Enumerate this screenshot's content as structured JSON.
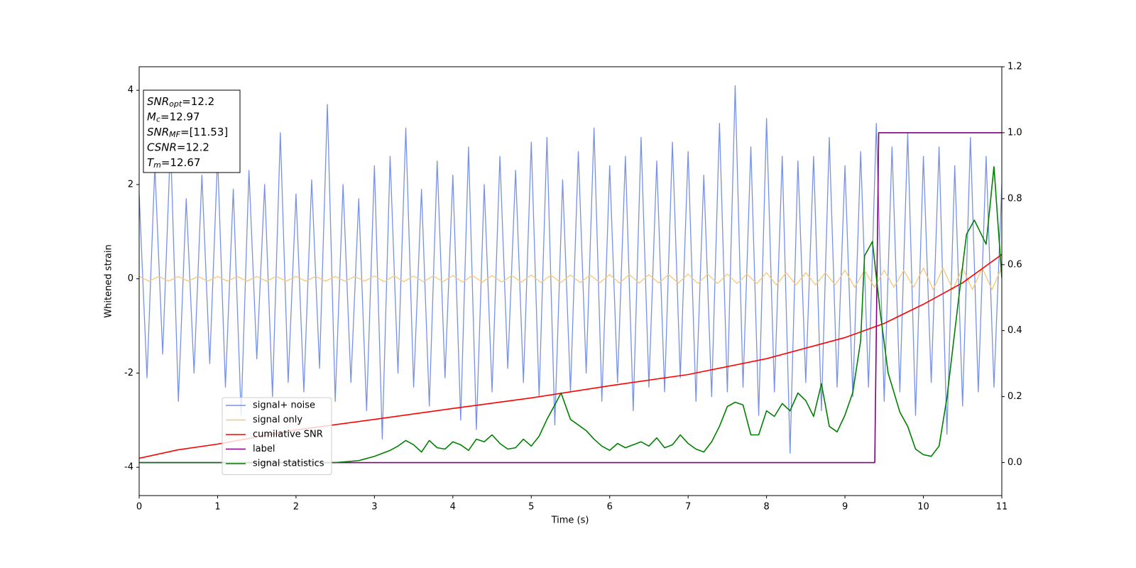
{
  "chart_data": {
    "type": "line",
    "xlabel": "Time (s)",
    "ylabel": "Whitened strain",
    "xlim": [
      0,
      11
    ],
    "xticks": [
      0,
      1,
      2,
      3,
      4,
      5,
      6,
      7,
      8,
      9,
      10,
      11
    ],
    "ylim": [
      -4.6,
      4.5
    ],
    "yticks": [
      -4,
      -2,
      0,
      2,
      4
    ],
    "y2lim": [
      -0.1,
      1.2
    ],
    "y2ticks": [
      {
        "value": 0,
        "label": "0.0"
      },
      {
        "value": 0.2,
        "label": "0.2"
      },
      {
        "value": 0.4,
        "label": "0.4"
      },
      {
        "value": 0.6,
        "label": "0.6"
      },
      {
        "value": 0.8,
        "label": "0.8"
      },
      {
        "value": 1.0,
        "label": "1.0"
      },
      {
        "value": 1.2,
        "label": "1.2"
      }
    ],
    "legend": "lower left",
    "annotations": [
      {
        "base": "SNR",
        "sub": "opt",
        "text": "=12.2"
      },
      {
        "base": "M",
        "sub": "c",
        "text": "=12.97"
      },
      {
        "base": "SNR",
        "sub": "MF",
        "text": "=[11.53]"
      },
      {
        "base": "CSNR",
        "text": "=12.2"
      },
      {
        "base": "T",
        "sub": "m",
        "text": "=12.67"
      }
    ],
    "series": [
      {
        "name": "signal+ noise",
        "color": "#7891e8",
        "x": [
          0,
          0.1,
          0.2,
          0.3,
          0.4,
          0.5,
          0.6,
          0.7,
          0.8,
          0.9,
          1,
          1.1,
          1.2,
          1.3,
          1.4,
          1.5,
          1.6,
          1.7,
          1.8,
          1.9,
          2,
          2.1,
          2.2,
          2.3,
          2.4,
          2.5,
          2.6,
          2.7,
          2.8,
          2.9,
          3,
          3.1,
          3.2,
          3.3,
          3.4,
          3.5,
          3.6,
          3.7,
          3.8,
          3.9,
          4,
          4.1,
          4.2,
          4.3,
          4.4,
          4.5,
          4.6,
          4.7,
          4.8,
          4.9,
          5,
          5.1,
          5.2,
          5.3,
          5.4,
          5.5,
          5.6,
          5.7,
          5.8,
          5.9,
          6,
          6.1,
          6.2,
          6.3,
          6.4,
          6.5,
          6.6,
          6.7,
          6.8,
          6.9,
          7,
          7.1,
          7.2,
          7.3,
          7.4,
          7.5,
          7.6,
          7.7,
          7.8,
          7.9,
          8,
          8.1,
          8.2,
          8.3,
          8.4,
          8.5,
          8.6,
          8.7,
          8.8,
          8.9,
          9,
          9.1,
          9.2,
          9.3,
          9.4,
          9.5,
          9.6,
          9.7,
          9.8,
          9.9,
          10,
          10.1,
          10.2,
          10.3,
          10.4,
          10.5,
          10.6,
          10.7,
          10.8,
          10.9,
          11
        ],
        "values": [
          1.8,
          -2.1,
          2.4,
          -1.6,
          2.9,
          -2.6,
          1.7,
          -2.0,
          2.2,
          -1.8,
          2.6,
          -2.3,
          1.9,
          -2.9,
          2.3,
          -1.7,
          2.0,
          -2.5,
          3.1,
          -2.2,
          1.8,
          -2.4,
          2.1,
          -1.9,
          3.7,
          -2.6,
          2.0,
          -2.2,
          1.7,
          -2.8,
          2.4,
          -3.4,
          2.6,
          -2.0,
          3.2,
          -2.3,
          1.9,
          -2.7,
          2.5,
          -2.1,
          2.2,
          -3.0,
          2.8,
          -3.2,
          2.0,
          -2.4,
          2.6,
          -1.9,
          2.3,
          -2.2,
          2.9,
          -2.5,
          3.0,
          -3.1,
          2.1,
          -2.4,
          2.7,
          -2.0,
          3.2,
          -2.6,
          2.4,
          -2.2,
          2.6,
          -2.8,
          3.0,
          -2.3,
          2.5,
          -2.4,
          2.9,
          -2.1,
          2.7,
          -2.6,
          2.2,
          -2.5,
          3.3,
          -2.4,
          4.1,
          -2.3,
          2.8,
          -2.9,
          3.4,
          -2.4,
          2.6,
          -3.7,
          2.5,
          -2.2,
          2.6,
          -2.8,
          3.0,
          -2.3,
          2.4,
          -2.5,
          2.7,
          -2.3,
          3.3,
          -2.6,
          2.8,
          -2.4,
          3.1,
          -2.9,
          2.6,
          -2.2,
          2.8,
          -3.3,
          2.4,
          -2.7,
          3.0,
          -2.4,
          2.6,
          -2.3,
          2.0
        ]
      },
      {
        "name": "signal only",
        "color": "#f6c87a",
        "x": [
          0,
          0.125,
          0.25,
          0.375,
          0.5,
          0.625,
          0.75,
          0.875,
          1,
          1.125,
          1.25,
          1.375,
          1.5,
          1.625,
          1.75,
          1.875,
          2,
          2.125,
          2.25,
          2.375,
          2.5,
          2.625,
          2.75,
          2.875,
          3,
          3.125,
          3.25,
          3.375,
          3.5,
          3.625,
          3.75,
          3.875,
          4,
          4.125,
          4.25,
          4.375,
          4.5,
          4.625,
          4.75,
          4.875,
          5,
          5.125,
          5.25,
          5.375,
          5.5,
          5.625,
          5.75,
          5.875,
          6,
          6.125,
          6.25,
          6.375,
          6.5,
          6.625,
          6.75,
          6.875,
          7,
          7.125,
          7.25,
          7.375,
          7.5,
          7.625,
          7.75,
          7.875,
          8,
          8.125,
          8.25,
          8.375,
          8.5,
          8.625,
          8.75,
          8.875,
          9,
          9.125,
          9.25,
          9.375,
          9.5,
          9.625,
          9.75,
          9.875,
          10,
          10.125,
          10.25,
          10.375,
          10.5,
          10.625,
          10.75,
          10.875,
          11
        ],
        "values": [
          0.05,
          -0.05,
          0.05,
          -0.05,
          0.05,
          -0.05,
          0.05,
          -0.05,
          0.05,
          -0.05,
          0.05,
          -0.05,
          0.05,
          -0.05,
          0.05,
          -0.05,
          0.05,
          -0.05,
          0.05,
          -0.05,
          0.05,
          -0.05,
          0.05,
          -0.05,
          0.06,
          -0.06,
          0.06,
          -0.06,
          0.06,
          -0.06,
          0.06,
          -0.06,
          0.07,
          -0.07,
          0.07,
          -0.07,
          0.07,
          -0.07,
          0.07,
          -0.07,
          0.08,
          -0.08,
          0.08,
          -0.08,
          0.08,
          -0.08,
          0.08,
          -0.08,
          0.09,
          -0.09,
          0.09,
          -0.09,
          0.09,
          -0.09,
          0.09,
          -0.09,
          0.1,
          -0.1,
          0.1,
          -0.1,
          0.1,
          -0.1,
          0.1,
          -0.1,
          0.13,
          -0.13,
          0.13,
          -0.13,
          0.13,
          -0.13,
          0.13,
          -0.13,
          0.18,
          -0.18,
          0.18,
          -0.18,
          0.18,
          -0.18,
          0.18,
          -0.18,
          0.23,
          -0.23,
          0.23,
          -0.23,
          0.23,
          -0.23,
          0.23,
          -0.23,
          0.25
        ]
      },
      {
        "name": "cumilative SNR",
        "color": "#ff0000",
        "axis": "y2",
        "x": [
          0,
          0.5,
          1,
          2,
          3,
          4,
          5,
          6,
          7,
          8,
          9,
          9.5,
          10,
          10.5,
          11
        ],
        "values": [
          0.013,
          0.039,
          0.056,
          0.099,
          0.131,
          0.164,
          0.196,
          0.233,
          0.267,
          0.315,
          0.379,
          0.422,
          0.48,
          0.545,
          0.631
        ]
      },
      {
        "name": "label",
        "color": "#800080",
        "axis": "y2",
        "x": [
          0,
          9.38,
          9.43,
          11
        ],
        "values": [
          0,
          0,
          1,
          1
        ]
      },
      {
        "name": "signal statistics",
        "color": "#008000",
        "axis": "y2",
        "x": [
          0,
          2.5,
          2.8,
          3.0,
          3.2,
          3.3,
          3.4,
          3.5,
          3.6,
          3.7,
          3.8,
          3.9,
          4.0,
          4.1,
          4.2,
          4.3,
          4.4,
          4.5,
          4.6,
          4.7,
          4.8,
          4.9,
          5.0,
          5.1,
          5.2,
          5.3,
          5.38,
          5.5,
          5.6,
          5.7,
          5.8,
          5.9,
          6.0,
          6.1,
          6.2,
          6.3,
          6.4,
          6.5,
          6.6,
          6.7,
          6.8,
          6.9,
          7.0,
          7.1,
          7.2,
          7.3,
          7.4,
          7.5,
          7.6,
          7.7,
          7.8,
          7.9,
          8.0,
          8.1,
          8.2,
          8.3,
          8.4,
          8.5,
          8.6,
          8.7,
          8.8,
          8.9,
          9.0,
          9.1,
          9.2,
          9.25,
          9.35,
          9.45,
          9.55,
          9.7,
          9.8,
          9.9,
          10.0,
          10.1,
          10.2,
          10.3,
          10.45,
          10.55,
          10.65,
          10.8,
          10.9,
          11.0
        ],
        "values": [
          0,
          0,
          0.006,
          0.019,
          0.037,
          0.05,
          0.067,
          0.054,
          0.032,
          0.067,
          0.045,
          0.041,
          0.063,
          0.054,
          0.037,
          0.071,
          0.063,
          0.084,
          0.058,
          0.041,
          0.045,
          0.071,
          0.05,
          0.08,
          0.131,
          0.175,
          0.211,
          0.131,
          0.114,
          0.097,
          0.071,
          0.05,
          0.037,
          0.058,
          0.045,
          0.054,
          0.063,
          0.05,
          0.075,
          0.045,
          0.054,
          0.084,
          0.058,
          0.041,
          0.032,
          0.063,
          0.11,
          0.17,
          0.183,
          0.175,
          0.084,
          0.084,
          0.157,
          0.14,
          0.179,
          0.157,
          0.211,
          0.188,
          0.14,
          0.239,
          0.11,
          0.093,
          0.144,
          0.213,
          0.369,
          0.627,
          0.67,
          0.455,
          0.272,
          0.153,
          0.11,
          0.041,
          0.024,
          0.019,
          0.05,
          0.196,
          0.498,
          0.692,
          0.735,
          0.662,
          0.897,
          0.56
        ]
      }
    ]
  }
}
